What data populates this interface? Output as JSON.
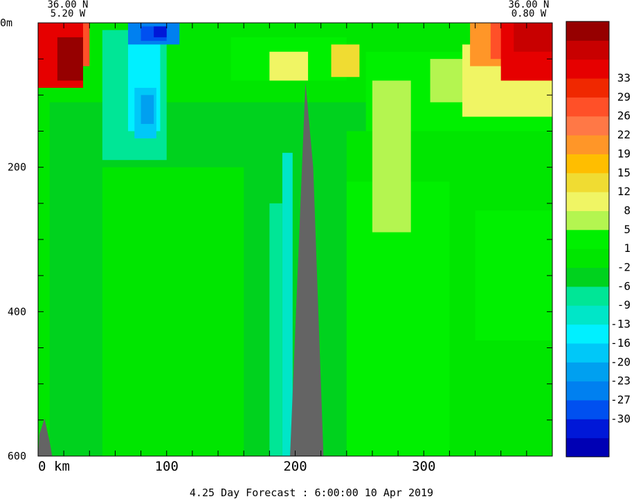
{
  "chart_data": {
    "type": "heatmap",
    "title": "",
    "caption": "4.25 Day Forecast :  6:00:00  10 Apr 2019",
    "corners": {
      "left": {
        "lat": "36.00 N",
        "lon": "5.20 W"
      },
      "right": {
        "lat": "36.00 N",
        "lon": "0.80 W"
      }
    },
    "x_axis": {
      "range": [
        0,
        400
      ],
      "unit_label": "km",
      "ticks": [
        {
          "value": 0,
          "label": "0"
        },
        {
          "value": 100,
          "label": "100"
        },
        {
          "value": 200,
          "label": "200"
        },
        {
          "value": 300,
          "label": "300"
        }
      ],
      "minor_step": 20
    },
    "y_axis": {
      "range": [
        0,
        600
      ],
      "inverted": true,
      "ticks": [
        {
          "value": 0,
          "label": "0m"
        },
        {
          "value": 200,
          "label": "200"
        },
        {
          "value": 400,
          "label": "400"
        },
        {
          "value": 600,
          "label": "600"
        }
      ],
      "minor_step": 50
    },
    "colorbar": {
      "colors": [
        "#0000b4",
        "#0018d8",
        "#0050f0",
        "#0080f0",
        "#00a0f0",
        "#00c8f8",
        "#00f0ff",
        "#00e6c8",
        "#00e696",
        "#00d21e",
        "#00e600",
        "#00f000",
        "#b4f550",
        "#f0f564",
        "#f0dc32",
        "#ffbe00",
        "#ff9628",
        "#ff7846",
        "#ff5028",
        "#f02800",
        "#e60000",
        "#c80000",
        "#960000"
      ],
      "labels": [
        "-30",
        "-27",
        "-23",
        "-20",
        "-16",
        "-13",
        "-9",
        "-6",
        "-2",
        "1",
        "5",
        "8",
        "12",
        "15",
        "19",
        "22",
        "26",
        "29",
        "33"
      ]
    },
    "regions": [
      {
        "level": 9,
        "shape": "rect",
        "x": [
          0,
          400
        ],
        "y": [
          0,
          600
        ]
      },
      {
        "level": 10,
        "shape": "rect",
        "x": [
          0,
          9
        ],
        "y": [
          60,
          600
        ]
      },
      {
        "level": 10,
        "shape": "rect",
        "x": [
          50,
          160
        ],
        "y": [
          200,
          600
        ]
      },
      {
        "level": 10,
        "shape": "rect",
        "x": [
          240,
          400
        ],
        "y": [
          150,
          600
        ]
      },
      {
        "level": 11,
        "shape": "rect",
        "x": [
          240,
          320
        ],
        "y": [
          220,
          600
        ]
      },
      {
        "level": 11,
        "shape": "rect",
        "x": [
          340,
          400
        ],
        "y": [
          260,
          440
        ]
      },
      {
        "level": 10,
        "shape": "rect",
        "x": [
          65,
          90
        ],
        "y": [
          320,
          600
        ]
      },
      {
        "level": 7,
        "shape": "rect",
        "x": [
          190,
          198
        ],
        "y": [
          180,
          600
        ]
      },
      {
        "level": 8,
        "shape": "rect",
        "x": [
          180,
          190
        ],
        "y": [
          250,
          600
        ]
      },
      {
        "level": 10,
        "shape": "rect",
        "x": [
          0,
          400
        ],
        "y": [
          0,
          110
        ]
      },
      {
        "level": 11,
        "shape": "rect",
        "x": [
          150,
          240
        ],
        "y": [
          20,
          80
        ]
      },
      {
        "level": 11,
        "shape": "rect",
        "x": [
          255,
          400
        ],
        "y": [
          40,
          150
        ]
      },
      {
        "level": 12,
        "shape": "rect",
        "x": [
          260,
          290
        ],
        "y": [
          80,
          290
        ]
      },
      {
        "level": 12,
        "shape": "rect",
        "x": [
          305,
          390
        ],
        "y": [
          50,
          110
        ]
      },
      {
        "level": 13,
        "shape": "rect",
        "x": [
          330,
          400
        ],
        "y": [
          30,
          130
        ]
      },
      {
        "level": 13,
        "shape": "rect",
        "x": [
          180,
          210
        ],
        "y": [
          40,
          80
        ]
      },
      {
        "level": 14,
        "shape": "rect",
        "x": [
          228,
          250
        ],
        "y": [
          30,
          75
        ]
      },
      {
        "level": 16,
        "shape": "rect",
        "x": [
          336,
          400
        ],
        "y": [
          0,
          60
        ]
      },
      {
        "level": 18,
        "shape": "rect",
        "x": [
          352,
          400
        ],
        "y": [
          0,
          50
        ]
      },
      {
        "level": 20,
        "shape": "rect",
        "x": [
          360,
          400
        ],
        "y": [
          0,
          80
        ]
      },
      {
        "level": 21,
        "shape": "rect",
        "x": [
          370,
          400
        ],
        "y": [
          0,
          40
        ]
      },
      {
        "level": 18,
        "shape": "rect",
        "x": [
          0,
          40
        ],
        "y": [
          0,
          60
        ]
      },
      {
        "level": 20,
        "shape": "rect",
        "x": [
          0,
          35
        ],
        "y": [
          0,
          90
        ]
      },
      {
        "level": 22,
        "shape": "rect",
        "x": [
          15,
          35
        ],
        "y": [
          20,
          80
        ]
      },
      {
        "level": 8,
        "shape": "rect",
        "x": [
          50,
          100
        ],
        "y": [
          10,
          190
        ]
      },
      {
        "level": 6,
        "shape": "rect",
        "x": [
          70,
          95
        ],
        "y": [
          10,
          150
        ]
      },
      {
        "level": 5,
        "shape": "rect",
        "x": [
          75,
          92
        ],
        "y": [
          90,
          160
        ]
      },
      {
        "level": 4,
        "shape": "rect",
        "x": [
          80,
          90
        ],
        "y": [
          100,
          140
        ]
      },
      {
        "level": 3,
        "shape": "rect",
        "x": [
          70,
          110
        ],
        "y": [
          0,
          30
        ]
      },
      {
        "level": 2,
        "shape": "rect",
        "x": [
          80,
          100
        ],
        "y": [
          5,
          25
        ]
      },
      {
        "level": 1,
        "shape": "rect",
        "x": [
          90,
          100
        ],
        "y": [
          5,
          20
        ]
      }
    ],
    "land": [
      {
        "points": [
          [
            196,
            600
          ],
          [
            208,
            82
          ],
          [
            214,
            200
          ],
          [
            222,
            600
          ]
        ]
      },
      {
        "points": [
          [
            0,
            600
          ],
          [
            1,
            570
          ],
          [
            5,
            548
          ],
          [
            9,
            580
          ],
          [
            11,
            600
          ]
        ]
      }
    ]
  }
}
